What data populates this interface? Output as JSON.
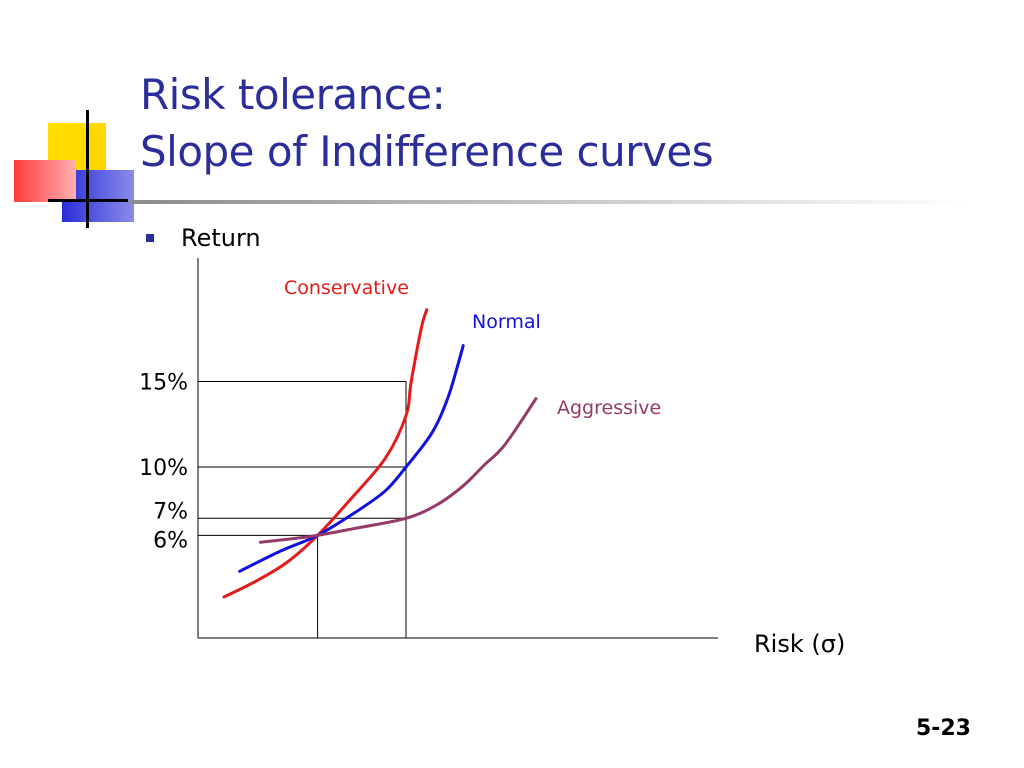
{
  "slide": {
    "title_line1": "Risk tolerance:",
    "title_line2": "Slope of Indifference curves",
    "bullet": "Return",
    "page_number": "5-23"
  },
  "colors": {
    "title": "#2a2d9a",
    "conservative": "#e31b1b",
    "normal": "#1111dd",
    "aggressive": "#943a6a"
  },
  "chart_data": {
    "type": "line",
    "title": "",
    "xlabel": "Risk (σ)",
    "ylabel": "Return",
    "y_ticks": [
      "15%",
      "10%",
      "7%",
      "6%"
    ],
    "y_tick_values": [
      15,
      10,
      7,
      6
    ],
    "series": [
      {
        "name": "Conservative",
        "color": "#e31b1b",
        "points": [
          [
            0.05,
            2.4
          ],
          [
            0.11,
            3.3
          ],
          [
            0.17,
            4.4
          ],
          [
            0.23,
            6.0
          ],
          [
            0.29,
            8.0
          ],
          [
            0.36,
            10.5
          ],
          [
            0.4,
            13.0
          ],
          [
            0.41,
            15.0
          ],
          [
            0.43,
            18.2
          ],
          [
            0.44,
            19.2
          ]
        ]
      },
      {
        "name": "Normal",
        "color": "#1111dd",
        "points": [
          [
            0.08,
            3.9
          ],
          [
            0.16,
            5.1
          ],
          [
            0.23,
            6.0
          ],
          [
            0.3,
            7.3
          ],
          [
            0.36,
            8.6
          ],
          [
            0.4,
            10.0
          ],
          [
            0.45,
            12.0
          ],
          [
            0.48,
            14.0
          ],
          [
            0.5,
            16.0
          ],
          [
            0.51,
            17.1
          ]
        ]
      },
      {
        "name": "Aggressive",
        "color": "#943a6a",
        "points": [
          [
            0.12,
            5.6
          ],
          [
            0.18,
            5.8
          ],
          [
            0.23,
            6.0
          ],
          [
            0.3,
            6.4
          ],
          [
            0.4,
            7.0
          ],
          [
            0.46,
            7.8
          ],
          [
            0.51,
            8.9
          ],
          [
            0.55,
            10.1
          ],
          [
            0.59,
            11.3
          ],
          [
            0.65,
            14.0
          ]
        ]
      }
    ],
    "reference_lines": [
      {
        "x": 0.23,
        "y": 6
      },
      {
        "x": 0.4,
        "y": 7
      },
      {
        "x": 0.4,
        "y": 10
      },
      {
        "x": 0.4,
        "y": 15
      }
    ],
    "grid": false,
    "legend": "inline labels"
  }
}
